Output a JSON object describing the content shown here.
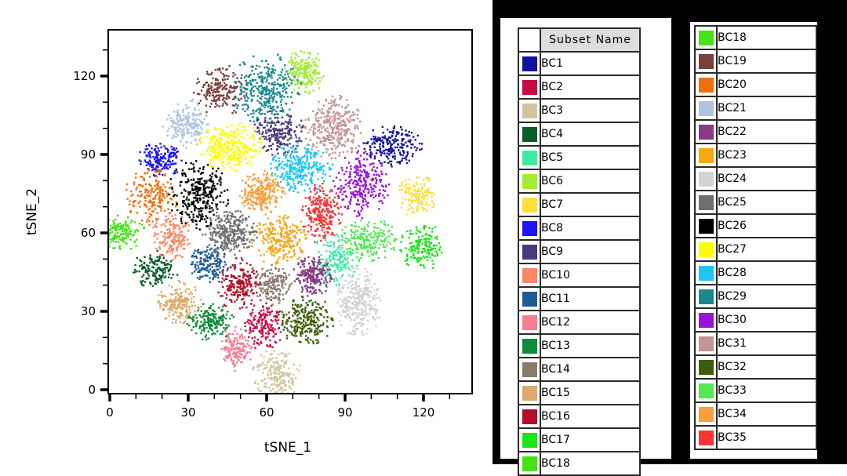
{
  "chart_data": {
    "type": "scatter",
    "title": "",
    "xlabel": "tSNE_1",
    "ylabel": "tSNE_2",
    "xlim": [
      0,
      138
    ],
    "ylim": [
      0,
      138
    ],
    "x_major_ticks": [
      0,
      30,
      60,
      90,
      120
    ],
    "y_major_ticks": [
      0,
      30,
      60,
      90,
      120
    ],
    "minor_tick_step": 10,
    "grid": false,
    "legend_position": "right-tables",
    "clusters": [
      {
        "name": "BC1",
        "color": "#12129E",
        "x": 108,
        "y": 93,
        "r": 8.5
      },
      {
        "name": "BC2",
        "color": "#C80A46",
        "x": 59,
        "y": 25,
        "r": 7.5
      },
      {
        "name": "BC3",
        "color": "#CFC69E",
        "x": 64,
        "y": 5.5,
        "r": 8
      },
      {
        "name": "BC4",
        "color": "#0A5C28",
        "x": 17.5,
        "y": 46,
        "r": 7
      },
      {
        "name": "BC5",
        "color": "#3FEBA4",
        "x": 86.5,
        "y": 50,
        "r": 7.5
      },
      {
        "name": "BC6",
        "color": "#A2EC38",
        "x": 74.5,
        "y": 122,
        "r": 8
      },
      {
        "name": "BC7",
        "color": "#FBDF3B",
        "x": 117,
        "y": 74.5,
        "r": 7
      },
      {
        "name": "BC8",
        "color": "#1E14F5",
        "x": 19.5,
        "y": 88,
        "r": 7.5
      },
      {
        "name": "BC9",
        "color": "#493A7E",
        "x": 64.5,
        "y": 98.5,
        "r": 8
      },
      {
        "name": "BC10",
        "color": "#FB8763",
        "x": 24,
        "y": 58.5,
        "r": 7
      },
      {
        "name": "BC11",
        "color": "#1E5C92",
        "x": 38,
        "y": 48,
        "r": 7.5
      },
      {
        "name": "BC12",
        "color": "#F57E93",
        "x": 48,
        "y": 15.5,
        "r": 7
      },
      {
        "name": "BC13",
        "color": "#0E8C3C",
        "x": 38.5,
        "y": 26,
        "r": 7.5
      },
      {
        "name": "BC14",
        "color": "#8A7A6C",
        "x": 62.5,
        "y": 40,
        "r": 7.5
      },
      {
        "name": "BC15",
        "color": "#DCAB6C",
        "x": 26.5,
        "y": 33,
        "r": 8
      },
      {
        "name": "BC16",
        "color": "#B21026",
        "x": 49.5,
        "y": 40,
        "r": 8
      },
      {
        "name": "BC17",
        "color": "#1BE41B",
        "x": 119.5,
        "y": 55,
        "r": 7.5
      },
      {
        "name": "BC18",
        "color": "#44E414",
        "x": 4,
        "y": 60,
        "r": 7
      },
      {
        "name": "BC19",
        "color": "#7B3F3D",
        "x": 42.5,
        "y": 114,
        "r": 8
      },
      {
        "name": "BC20",
        "color": "#F26E0D",
        "x": 16,
        "y": 74,
        "r": 8
      },
      {
        "name": "BC21",
        "color": "#AEC3DF",
        "x": 29,
        "y": 102,
        "r": 8
      },
      {
        "name": "BC22",
        "color": "#873B82",
        "x": 77.5,
        "y": 43.5,
        "r": 8
      },
      {
        "name": "BC23",
        "color": "#F6A813",
        "x": 65,
        "y": 58,
        "r": 9
      },
      {
        "name": "BC24",
        "color": "#D3D3D3",
        "x": 95,
        "y": 33.5,
        "r": 10
      },
      {
        "name": "BC25",
        "color": "#6F6F6F",
        "x": 46,
        "y": 60,
        "r": 10
      },
      {
        "name": "BC26",
        "color": "#000000",
        "x": 34,
        "y": 75,
        "r": 10
      },
      {
        "name": "BC27",
        "color": "#FDFD00",
        "x": 47,
        "y": 93,
        "r": 10
      },
      {
        "name": "BC28",
        "color": "#20C4F7",
        "x": 73.5,
        "y": 85,
        "r": 9.5
      },
      {
        "name": "BC29",
        "color": "#1A898D",
        "x": 60,
        "y": 115,
        "r": 10.5
      },
      {
        "name": "BC30",
        "color": "#9A14D7",
        "x": 96,
        "y": 78.5,
        "r": 9.5
      },
      {
        "name": "BC31",
        "color": "#C59497",
        "x": 86,
        "y": 100.5,
        "r": 10.5
      },
      {
        "name": "BC32",
        "color": "#3F5E0B",
        "x": 75,
        "y": 26.5,
        "r": 9
      },
      {
        "name": "BC33",
        "color": "#55E852",
        "x": 99,
        "y": 57.5,
        "r": 8.5
      },
      {
        "name": "BC34",
        "color": "#F99E3C",
        "x": 58,
        "y": 75.5,
        "r": 9
      },
      {
        "name": "BC35",
        "color": "#FA3434",
        "x": 81,
        "y": 67.5,
        "r": 9
      }
    ]
  },
  "legend": {
    "header_label": "Subset Name",
    "table1": [
      {
        "name": "BC1",
        "color": "#12129E"
      },
      {
        "name": "BC2",
        "color": "#C80A46"
      },
      {
        "name": "BC3",
        "color": "#CFC69E"
      },
      {
        "name": "BC4",
        "color": "#0A5C28"
      },
      {
        "name": "BC5",
        "color": "#3FEBA4"
      },
      {
        "name": "BC6",
        "color": "#A2EC38"
      },
      {
        "name": "BC7",
        "color": "#FBDF3B"
      },
      {
        "name": "BC8",
        "color": "#1E14F5"
      },
      {
        "name": "BC9",
        "color": "#493A7E"
      },
      {
        "name": "BC10",
        "color": "#FB8763"
      },
      {
        "name": "BC11",
        "color": "#1E5C92"
      },
      {
        "name": "BC12",
        "color": "#F57E93"
      },
      {
        "name": "BC13",
        "color": "#0E8C3C"
      },
      {
        "name": "BC14",
        "color": "#8A7A6C"
      },
      {
        "name": "BC15",
        "color": "#DCAB6C"
      },
      {
        "name": "BC16",
        "color": "#B21026"
      },
      {
        "name": "BC17",
        "color": "#1BE41B"
      }
    ],
    "table1_partial_next": {
      "name": "BC18",
      "color": "#44E414"
    },
    "table2": [
      {
        "name": "BC18",
        "color": "#44E414"
      },
      {
        "name": "BC19",
        "color": "#7B3F3D"
      },
      {
        "name": "BC20",
        "color": "#F26E0D"
      },
      {
        "name": "BC21",
        "color": "#AEC3DF"
      },
      {
        "name": "BC22",
        "color": "#873B82"
      },
      {
        "name": "BC23",
        "color": "#F6A813"
      },
      {
        "name": "BC24",
        "color": "#D3D3D3"
      },
      {
        "name": "BC25",
        "color": "#6F6F6F"
      },
      {
        "name": "BC26",
        "color": "#000000"
      },
      {
        "name": "BC27",
        "color": "#FDFD00"
      },
      {
        "name": "BC28",
        "color": "#20C4F7"
      },
      {
        "name": "BC29",
        "color": "#1A898D"
      },
      {
        "name": "BC30",
        "color": "#9A14D7"
      },
      {
        "name": "BC31",
        "color": "#C59497"
      },
      {
        "name": "BC32",
        "color": "#3F5E0B"
      },
      {
        "name": "BC33",
        "color": "#55E852"
      },
      {
        "name": "BC34",
        "color": "#F99E3C"
      },
      {
        "name": "BC35",
        "color": "#FA3434"
      }
    ]
  },
  "colors": {
    "panel_bg": "#000000",
    "card_bg": "#FFFFFF",
    "header_bg": "#DDDDDD",
    "table_border": "#2A2A2A",
    "axis": "#000000"
  }
}
